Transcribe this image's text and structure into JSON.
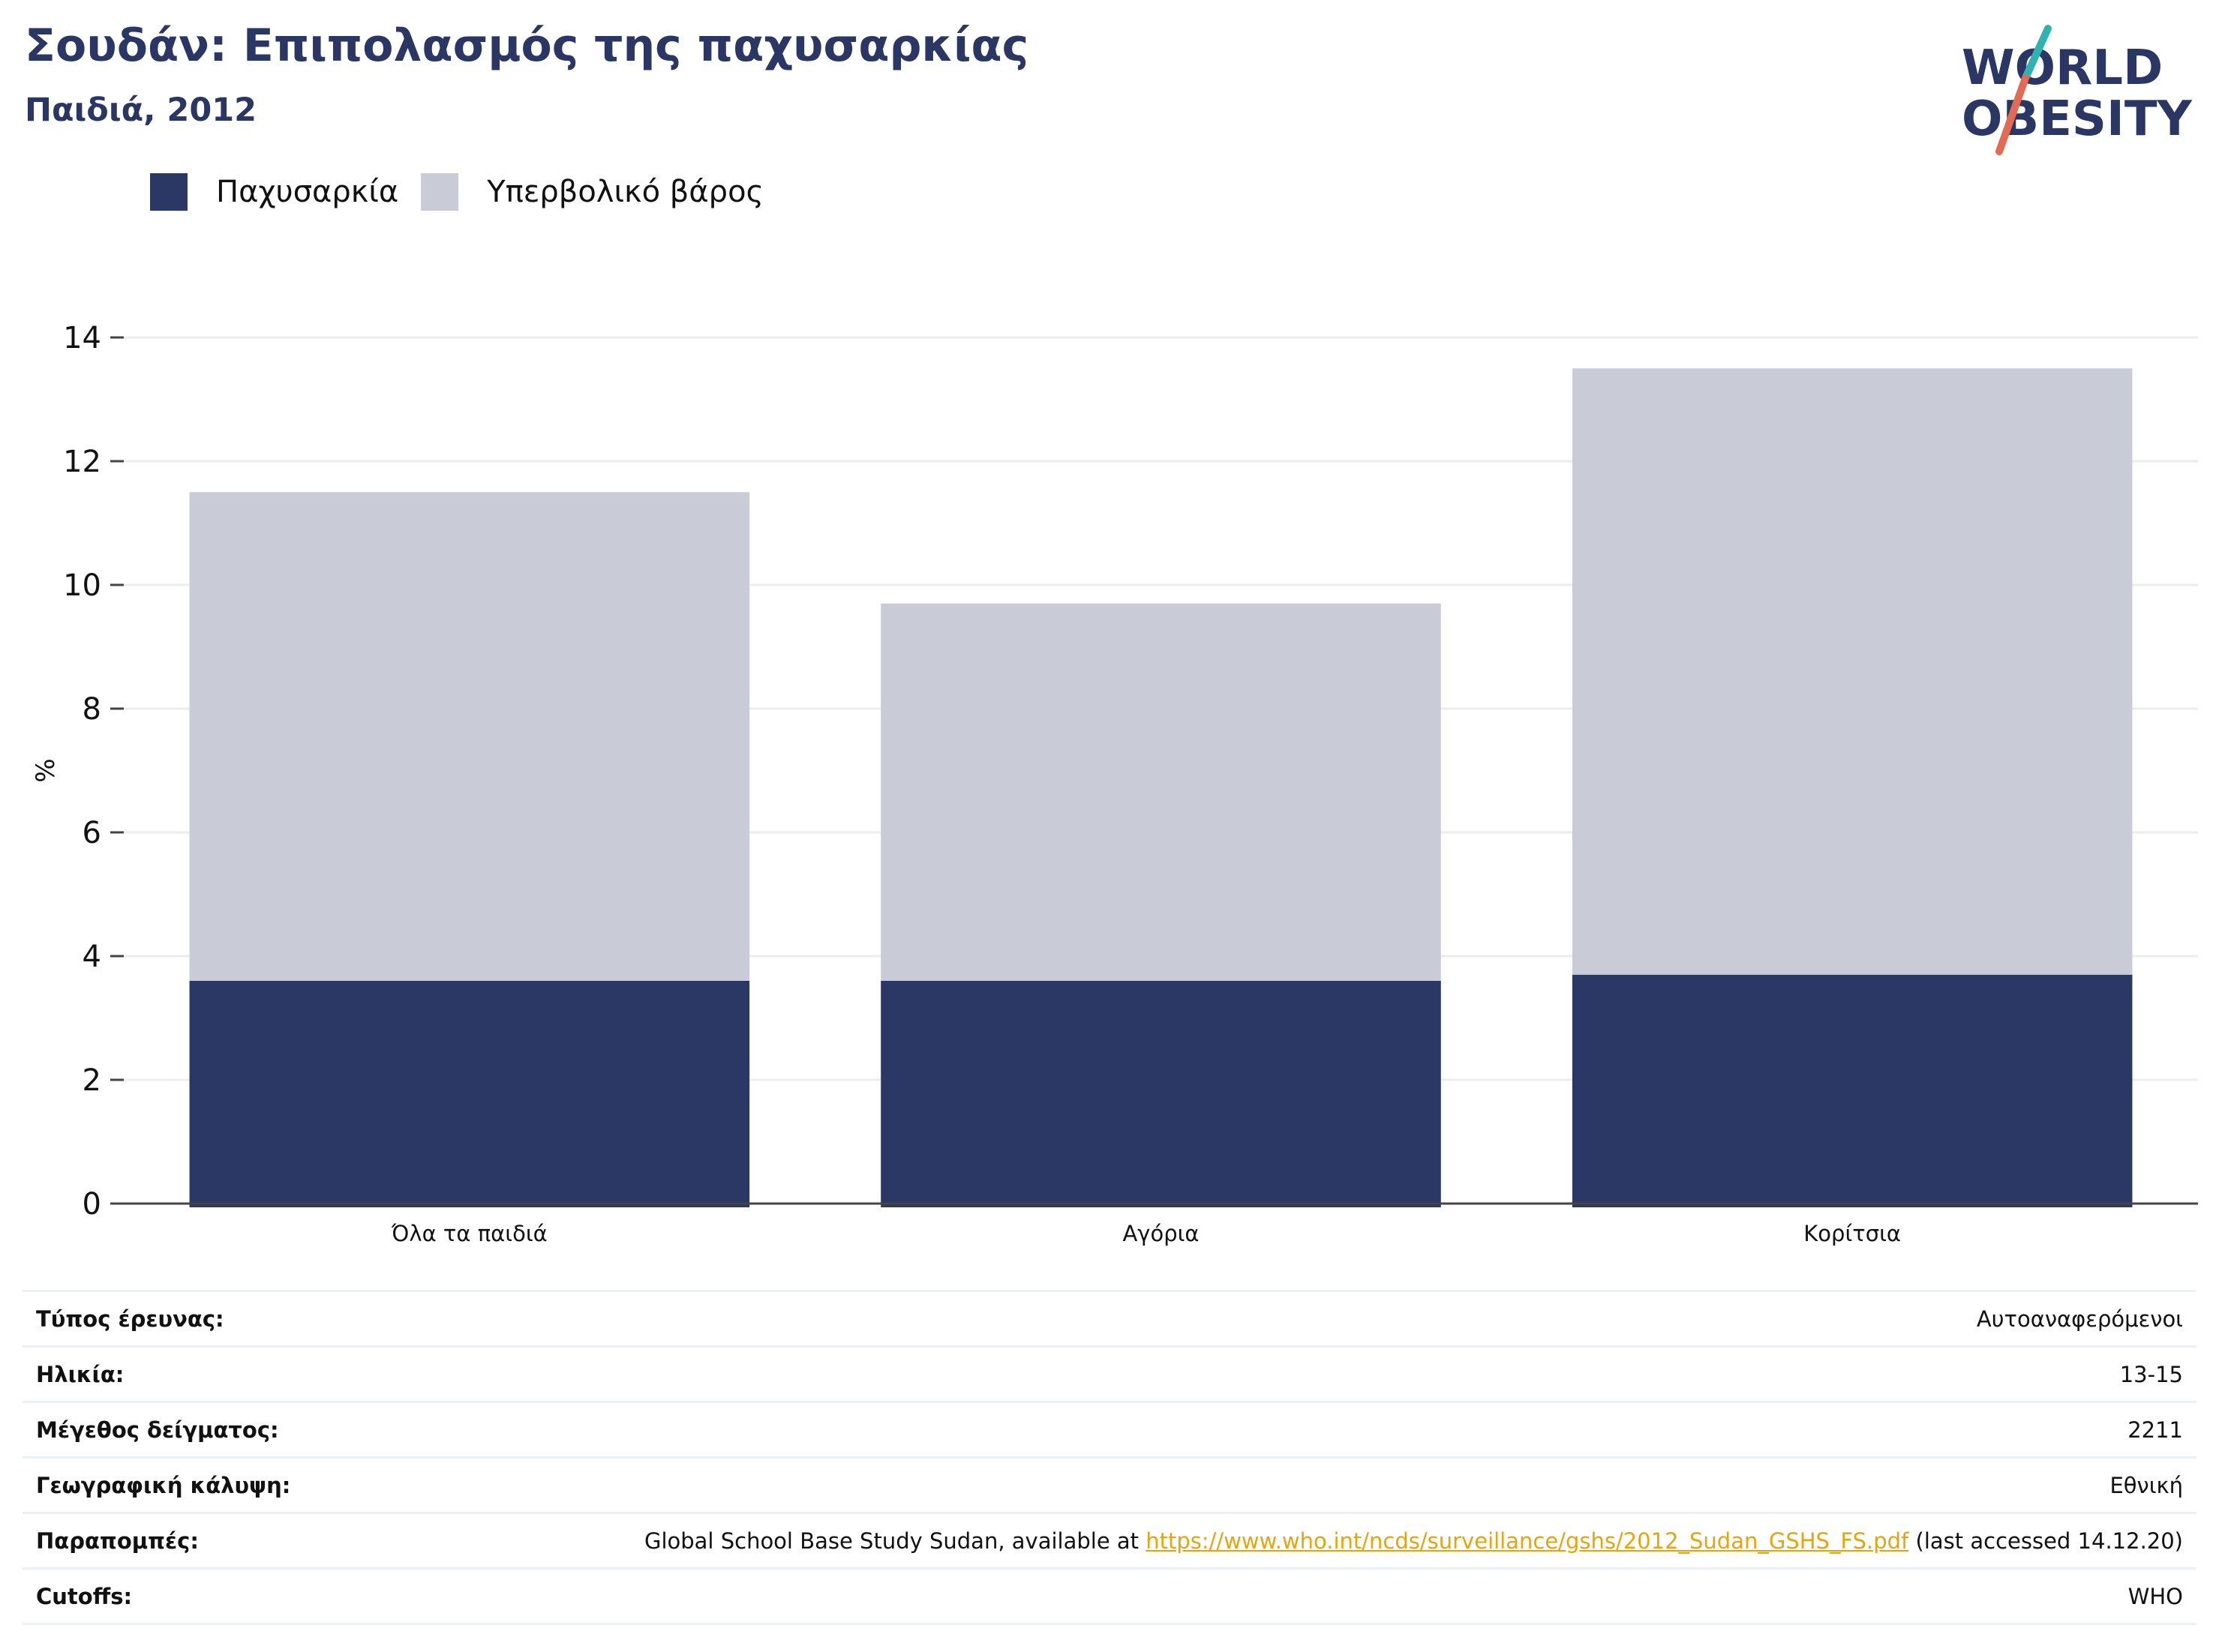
{
  "title": "Σουδάν: Επιπολασμός της παχυσαρκίας",
  "subtitle": "Παιδιά, 2012",
  "logo": {
    "line1": "WORLD",
    "line2": "OBESITY"
  },
  "colors": {
    "obesity": "#2b3764",
    "overweight": "#c9cbd6",
    "title": "#2a3764",
    "link": "#e3a611"
  },
  "chart_data": {
    "type": "bar",
    "stacked": true,
    "categories": [
      "Όλα τα παιδιά",
      "Αγόρια",
      "Κορίτσια"
    ],
    "series": [
      {
        "name": "Παχυσαρκία",
        "values": [
          3.6,
          3.6,
          3.7
        ]
      },
      {
        "name": "Υπερβολικό βάρος",
        "values": [
          7.9,
          6.1,
          9.8
        ]
      }
    ],
    "ylabel": "%",
    "ylim": [
      0,
      14
    ],
    "yticks": [
      "0",
      "2",
      "4",
      "6",
      "8",
      "10",
      "12",
      "14"
    ],
    "grid": true,
    "legend_position": "top-left"
  },
  "info": [
    {
      "label": "Τύπος έρευνας:",
      "value": "Αυτοαναφερόμενοι"
    },
    {
      "label": "Ηλικία:",
      "value": "13-15"
    },
    {
      "label": "Μέγεθος δείγματος:",
      "value": "2211"
    },
    {
      "label": "Γεωγραφική κάλυψη:",
      "value": "Εθνική"
    },
    {
      "label": "Παραπομπές:",
      "value_pre": "Global School Base Study Sudan, available at ",
      "link": "https://www.who.int/ncds/surveillance/gshs/2012_Sudan_GSHS_FS.pdf",
      "value_post": " (last accessed 14.12.20)"
    },
    {
      "label": "Cutoffs:",
      "value": "WHO"
    }
  ]
}
